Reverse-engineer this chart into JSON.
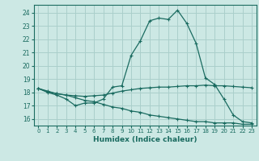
{
  "xlabel": "Humidex (Indice chaleur)",
  "bg_color": "#cce8e4",
  "grid_color": "#aacfcb",
  "line_color": "#1a6b60",
  "xlim": [
    -0.5,
    23.5
  ],
  "ylim": [
    15.5,
    24.6
  ],
  "yticks": [
    16,
    17,
    18,
    19,
    20,
    21,
    22,
    23,
    24
  ],
  "xticks": [
    0,
    1,
    2,
    3,
    4,
    5,
    6,
    7,
    8,
    9,
    10,
    11,
    12,
    13,
    14,
    15,
    16,
    17,
    18,
    19,
    20,
    21,
    22,
    23
  ],
  "line1_x": [
    0,
    1,
    2,
    3,
    4,
    5,
    6,
    7,
    8,
    9,
    10,
    11,
    12,
    13,
    14,
    15,
    16,
    17,
    18,
    19,
    20,
    21,
    22,
    23
  ],
  "line1_y": [
    18.3,
    18.0,
    17.8,
    17.5,
    17.0,
    17.2,
    17.2,
    17.5,
    18.4,
    18.5,
    20.8,
    21.9,
    23.4,
    23.6,
    23.5,
    24.2,
    23.2,
    21.7,
    19.1,
    18.6,
    17.5,
    16.3,
    15.8,
    15.7
  ],
  "line2_x": [
    0,
    1,
    2,
    3,
    4,
    5,
    6,
    7,
    8,
    9,
    10,
    11,
    12,
    13,
    14,
    15,
    16,
    17,
    18,
    19,
    20,
    21,
    22,
    23
  ],
  "line2_y": [
    18.3,
    18.05,
    17.9,
    17.8,
    17.75,
    17.7,
    17.75,
    17.8,
    17.95,
    18.1,
    18.2,
    18.3,
    18.35,
    18.4,
    18.4,
    18.45,
    18.5,
    18.5,
    18.55,
    18.5,
    18.5,
    18.45,
    18.4,
    18.35
  ],
  "line3_x": [
    0,
    1,
    2,
    3,
    4,
    5,
    6,
    7,
    8,
    9,
    10,
    11,
    12,
    13,
    14,
    15,
    16,
    17,
    18,
    19,
    20,
    21,
    22,
    23
  ],
  "line3_y": [
    18.3,
    18.1,
    17.9,
    17.8,
    17.6,
    17.4,
    17.3,
    17.1,
    16.9,
    16.8,
    16.6,
    16.5,
    16.3,
    16.2,
    16.1,
    16.0,
    15.9,
    15.8,
    15.8,
    15.7,
    15.7,
    15.7,
    15.6,
    15.6
  ]
}
